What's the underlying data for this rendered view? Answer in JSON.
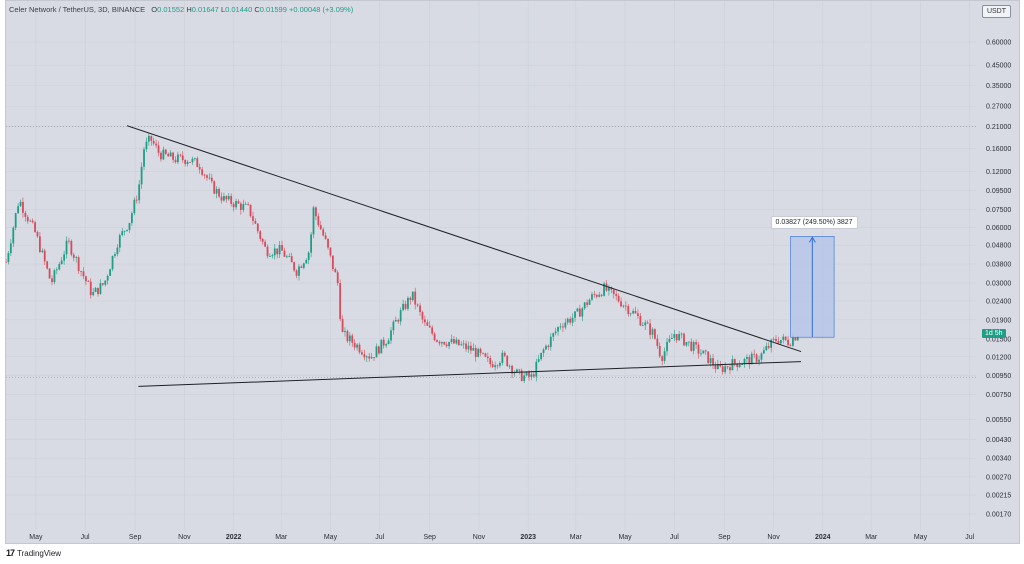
{
  "header": {
    "symbol": "Celer Network / TetherUS, 3D, BINANCE",
    "open_label": "O",
    "open": "0.01552",
    "high_label": "H",
    "high": "0.01647",
    "low_label": "L",
    "low": "0.01440",
    "close_label": "C",
    "close": "0.01599",
    "change": "+0.00048 (+3.09%)"
  },
  "currency_button": "USDT",
  "price_tag": "1d 5h",
  "measure_label": "0.03827 (249.50%) 3827",
  "footer": {
    "logo": "17",
    "brand": "TradingView"
  },
  "colors": {
    "up": "#1e9e87",
    "down": "#d94a5a",
    "background": "#d8dbe3",
    "measure_fill": "#b7c6ea",
    "measure_line": "#2f6fd8"
  },
  "chart_data": {
    "type": "candlestick",
    "title": "",
    "y_scale": "log",
    "ylim": [
      0.0015,
      0.8
    ],
    "y_ticks": [
      "0.60000",
      "0.45000",
      "0.35000",
      "0.27000",
      "0.21000",
      "0.16000",
      "0.12000",
      "0.09500",
      "0.07500",
      "0.06000",
      "0.04800",
      "0.03800",
      "0.03000",
      "0.02400",
      "0.01900",
      "0.01500",
      "0.01200",
      "0.00950",
      "0.00750",
      "0.00550",
      "0.00430",
      "0.00340",
      "0.00270",
      "0.00215",
      "0.00170"
    ],
    "x_ticks": [
      "May",
      "Jul",
      "Sep",
      "Nov",
      "2022",
      "Mar",
      "May",
      "Jul",
      "Sep",
      "Nov",
      "2023",
      "Mar",
      "May",
      "Jul",
      "Sep",
      "Nov",
      "2024",
      "Mar",
      "May",
      "Jul"
    ],
    "x_range": [
      "2021-03-25",
      "2024-07-15"
    ],
    "series_close_points": [
      [
        "2021-03-25",
        0.039
      ],
      [
        "2021-04-10",
        0.085
      ],
      [
        "2021-05-01",
        0.055
      ],
      [
        "2021-05-20",
        0.03
      ],
      [
        "2021-06-10",
        0.05
      ],
      [
        "2021-06-26",
        0.035
      ],
      [
        "2021-07-10",
        0.026
      ],
      [
        "2021-07-25",
        0.03
      ],
      [
        "2021-08-10",
        0.05
      ],
      [
        "2021-08-25",
        0.065
      ],
      [
        "2021-09-05",
        0.095
      ],
      [
        "2021-09-12",
        0.16
      ],
      [
        "2021-09-20",
        0.18
      ],
      [
        "2021-10-01",
        0.15
      ],
      [
        "2021-10-20",
        0.14
      ],
      [
        "2021-11-05",
        0.14
      ],
      [
        "2021-11-20",
        0.13
      ],
      [
        "2021-12-05",
        0.1
      ],
      [
        "2021-12-20",
        0.085
      ],
      [
        "2022-01-05",
        0.08
      ],
      [
        "2022-01-20",
        0.075
      ],
      [
        "2022-02-10",
        0.045
      ],
      [
        "2022-03-01",
        0.045
      ],
      [
        "2022-03-20",
        0.035
      ],
      [
        "2022-04-05",
        0.045
      ],
      [
        "2022-04-10",
        0.075
      ],
      [
        "2022-04-25",
        0.05
      ],
      [
        "2022-05-10",
        0.03
      ],
      [
        "2022-05-15",
        0.016
      ],
      [
        "2022-06-01",
        0.014
      ],
      [
        "2022-06-20",
        0.012
      ],
      [
        "2022-07-10",
        0.015
      ],
      [
        "2022-07-25",
        0.02
      ],
      [
        "2022-08-10",
        0.026
      ],
      [
        "2022-08-25",
        0.018
      ],
      [
        "2022-09-10",
        0.015
      ],
      [
        "2022-10-05",
        0.014
      ],
      [
        "2022-10-25",
        0.013
      ],
      [
        "2022-11-15",
        0.011
      ],
      [
        "2022-12-01",
        0.012
      ],
      [
        "2022-12-20",
        0.0095
      ],
      [
        "2023-01-05",
        0.0093
      ],
      [
        "2023-01-20",
        0.013
      ],
      [
        "2023-02-10",
        0.018
      ],
      [
        "2023-03-01",
        0.02
      ],
      [
        "2023-03-20",
        0.025
      ],
      [
        "2023-04-05",
        0.028
      ],
      [
        "2023-04-25",
        0.024
      ],
      [
        "2023-05-15",
        0.02
      ],
      [
        "2023-06-05",
        0.016
      ],
      [
        "2023-06-15",
        0.012
      ],
      [
        "2023-07-01",
        0.016
      ],
      [
        "2023-07-20",
        0.014
      ],
      [
        "2023-08-10",
        0.012
      ],
      [
        "2023-08-25",
        0.0102
      ],
      [
        "2023-09-10",
        0.011
      ],
      [
        "2023-09-30",
        0.0115
      ],
      [
        "2023-10-15",
        0.012
      ],
      [
        "2023-10-25",
        0.0135
      ],
      [
        "2023-11-05",
        0.015
      ],
      [
        "2023-11-20",
        0.0145
      ],
      [
        "2023-12-01",
        0.01599
      ]
    ],
    "trendlines": [
      {
        "name": "descending-resistance",
        "from": [
          "2021-08-22",
          0.212
        ],
        "to": [
          "2023-12-05",
          0.0128
        ]
      },
      {
        "name": "ascending-support",
        "from": [
          "2021-09-05",
          0.0083
        ],
        "to": [
          "2023-12-05",
          0.0113
        ]
      }
    ],
    "measure": {
      "from_date": "2023-11-22",
      "to_date": "2024-01-15",
      "low": 0.0153,
      "high": 0.0536,
      "price_change": "0.03827",
      "percent": "249.50%",
      "ticks": "3827"
    },
    "reference_levels": [
      0.21,
      0.0093
    ],
    "grid": true
  }
}
